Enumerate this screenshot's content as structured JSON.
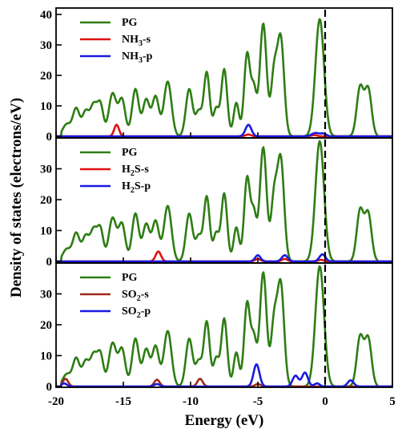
{
  "chart_data": {
    "type": "line",
    "xlabel": "Energy (eV)",
    "ylabel": "Density of states (electrons/eV)",
    "xlim": [
      -20,
      5
    ],
    "x_ticks": [
      "-20",
      "-15",
      "-10",
      "-5",
      "0",
      "5"
    ],
    "fermi_level": 0,
    "colors": {
      "PG": "#2e7d14",
      "s": "#e01010",
      "p": "#1a1ae0",
      "SO2-s": "#a0281e"
    },
    "panels": [
      {
        "ylim": [
          0,
          40
        ],
        "y_ticks": [
          "0",
          "10",
          "20",
          "30",
          "40"
        ],
        "legend": [
          {
            "key": "PG",
            "label": "PG"
          },
          {
            "key": "s",
            "label": "NH",
            "sub": "3",
            "suffix": "-s"
          },
          {
            "key": "p",
            "label": "NH",
            "sub": "3",
            "suffix": "-p"
          }
        ],
        "series": [
          {
            "name": "PG",
            "color_key": "PG",
            "peaks": [
              [
                -19.2,
                4,
                0.3
              ],
              [
                -18.5,
                9,
                0.25
              ],
              [
                -17.8,
                8,
                0.25
              ],
              [
                -17.2,
                10,
                0.25
              ],
              [
                -16.7,
                10,
                0.22
              ],
              [
                -15.8,
                14,
                0.28
              ],
              [
                -15.1,
                12,
                0.25
              ],
              [
                -14.1,
                15.5,
                0.25
              ],
              [
                -13.3,
                12,
                0.25
              ],
              [
                -12.6,
                13,
                0.25
              ],
              [
                -11.7,
                18,
                0.28
              ],
              [
                -10.1,
                15.5,
                0.25
              ],
              [
                -9.4,
                8,
                0.22
              ],
              [
                -8.8,
                21,
                0.22
              ],
              [
                -8.1,
                9,
                0.2
              ],
              [
                -7.5,
                22,
                0.22
              ],
              [
                -6.6,
                11,
                0.2
              ],
              [
                -5.8,
                27,
                0.22
              ],
              [
                -5.3,
                15,
                0.2
              ],
              [
                -4.6,
                37,
                0.25
              ],
              [
                -3.8,
                20,
                0.22
              ],
              [
                -3.3,
                32,
                0.25
              ],
              [
                -0.4,
                38.5,
                0.32
              ],
              [
                2.6,
                16,
                0.25
              ],
              [
                3.2,
                15.5,
                0.25
              ]
            ]
          },
          {
            "name": "NH3-s",
            "color_key": "s",
            "peaks": [
              [
                -15.5,
                3.8,
                0.18
              ],
              [
                -5.7,
                0.6,
                0.2
              ],
              [
                -0.8,
                0.4,
                0.2
              ]
            ]
          },
          {
            "name": "NH3-p",
            "color_key": "p",
            "peaks": [
              [
                -5.7,
                3.8,
                0.22
              ],
              [
                -0.7,
                1.1,
                0.3
              ],
              [
                -0.1,
                0.8,
                0.2
              ]
            ]
          }
        ]
      },
      {
        "ylim": [
          0,
          40
        ],
        "y_ticks": [
          "0",
          "10",
          "20",
          "30"
        ],
        "legend": [
          {
            "key": "PG",
            "label": "PG"
          },
          {
            "key": "s",
            "label": "H",
            "sub": "2",
            "suffix": "S-s"
          },
          {
            "key": "p",
            "label": "H",
            "sub": "2",
            "suffix": "S-p"
          }
        ],
        "series": [
          {
            "name": "PG",
            "color_key": "PG",
            "peaks": [
              [
                -19.2,
                4,
                0.3
              ],
              [
                -18.5,
                9,
                0.25
              ],
              [
                -17.8,
                8,
                0.25
              ],
              [
                -17.2,
                10,
                0.25
              ],
              [
                -16.7,
                10,
                0.22
              ],
              [
                -15.8,
                14,
                0.28
              ],
              [
                -15.1,
                12,
                0.25
              ],
              [
                -14.1,
                15.5,
                0.25
              ],
              [
                -13.3,
                12,
                0.25
              ],
              [
                -12.6,
                13,
                0.25
              ],
              [
                -11.7,
                18,
                0.28
              ],
              [
                -10.1,
                15.5,
                0.25
              ],
              [
                -9.4,
                8,
                0.22
              ],
              [
                -8.8,
                21,
                0.22
              ],
              [
                -8.1,
                9,
                0.2
              ],
              [
                -7.5,
                22,
                0.22
              ],
              [
                -6.6,
                11,
                0.2
              ],
              [
                -5.8,
                27,
                0.22
              ],
              [
                -5.3,
                15,
                0.2
              ],
              [
                -4.6,
                37,
                0.25
              ],
              [
                -3.8,
                20,
                0.22
              ],
              [
                -3.3,
                33,
                0.25
              ],
              [
                -0.4,
                39,
                0.32
              ],
              [
                2.6,
                16.5,
                0.25
              ],
              [
                3.2,
                15.5,
                0.25
              ]
            ]
          },
          {
            "name": "H2S-s",
            "color_key": "s",
            "peaks": [
              [
                -12.4,
                3.2,
                0.2
              ],
              [
                -5.0,
                0.8,
                0.2
              ],
              [
                -3.0,
                0.8,
                0.2
              ],
              [
                -0.3,
                0.5,
                0.2
              ]
            ]
          },
          {
            "name": "H2S-p",
            "color_key": "p",
            "peaks": [
              [
                -5.0,
                2,
                0.2
              ],
              [
                -3.0,
                2,
                0.22
              ],
              [
                -0.2,
                2.3,
                0.22
              ]
            ]
          }
        ]
      },
      {
        "ylim": [
          0,
          40
        ],
        "y_ticks": [
          "0",
          "10",
          "20",
          "30"
        ],
        "legend": [
          {
            "key": "PG",
            "label": "PG"
          },
          {
            "key": "SO2-s",
            "label": "SO",
            "sub": "2",
            "suffix": "-s"
          },
          {
            "key": "p",
            "label": "SO",
            "sub": "2",
            "suffix": "-p"
          }
        ],
        "series": [
          {
            "name": "PG",
            "color_key": "PG",
            "peaks": [
              [
                -19.2,
                4,
                0.3
              ],
              [
                -18.5,
                9,
                0.25
              ],
              [
                -17.8,
                8,
                0.25
              ],
              [
                -17.2,
                10,
                0.25
              ],
              [
                -16.7,
                10,
                0.22
              ],
              [
                -15.8,
                14,
                0.28
              ],
              [
                -15.1,
                12,
                0.25
              ],
              [
                -14.1,
                15.5,
                0.25
              ],
              [
                -13.3,
                12,
                0.25
              ],
              [
                -12.6,
                13,
                0.25
              ],
              [
                -11.7,
                18,
                0.28
              ],
              [
                -10.1,
                15.5,
                0.25
              ],
              [
                -9.4,
                8,
                0.22
              ],
              [
                -8.8,
                21,
                0.22
              ],
              [
                -8.1,
                9,
                0.2
              ],
              [
                -7.5,
                22,
                0.22
              ],
              [
                -6.6,
                11,
                0.2
              ],
              [
                -5.8,
                27,
                0.22
              ],
              [
                -5.3,
                15,
                0.2
              ],
              [
                -4.6,
                37,
                0.25
              ],
              [
                -3.8,
                20,
                0.22
              ],
              [
                -3.3,
                33,
                0.25
              ],
              [
                -0.4,
                39,
                0.32
              ],
              [
                2.6,
                16,
                0.25
              ],
              [
                3.2,
                15.5,
                0.25
              ]
            ]
          },
          {
            "name": "SO2-s",
            "color_key": "SO2-s",
            "peaks": [
              [
                -19.3,
                2.5,
                0.2
              ],
              [
                -12.5,
                2.2,
                0.2
              ],
              [
                -9.3,
                2.5,
                0.2
              ],
              [
                -5.0,
                0.8,
                0.2
              ]
            ]
          },
          {
            "name": "SO2-p",
            "color_key": "p",
            "peaks": [
              [
                -19.4,
                1,
                0.2
              ],
              [
                -12.5,
                0.8,
                0.2
              ],
              [
                -5.1,
                7.2,
                0.22
              ],
              [
                -2.2,
                3.5,
                0.22
              ],
              [
                -1.5,
                4.5,
                0.22
              ],
              [
                -0.6,
                1,
                0.2
              ],
              [
                1.9,
                2,
                0.22
              ]
            ]
          }
        ]
      }
    ]
  }
}
